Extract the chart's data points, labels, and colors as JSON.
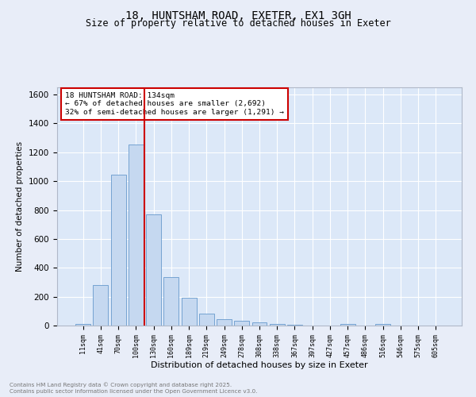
{
  "title1": "18, HUNTSHAM ROAD, EXETER, EX1 3GH",
  "title2": "Size of property relative to detached houses in Exeter",
  "xlabel": "Distribution of detached houses by size in Exeter",
  "ylabel": "Number of detached properties",
  "bar_labels": [
    "11sqm",
    "41sqm",
    "70sqm",
    "100sqm",
    "130sqm",
    "160sqm",
    "189sqm",
    "219sqm",
    "249sqm",
    "278sqm",
    "308sqm",
    "338sqm",
    "367sqm",
    "397sqm",
    "427sqm",
    "457sqm",
    "486sqm",
    "516sqm",
    "546sqm",
    "575sqm",
    "605sqm"
  ],
  "bar_values": [
    10,
    280,
    1045,
    1255,
    770,
    335,
    190,
    80,
    45,
    32,
    22,
    13,
    8,
    2,
    0,
    13,
    0,
    10,
    0,
    0,
    0
  ],
  "bar_color": "#c5d8f0",
  "bar_edgecolor": "#6699cc",
  "vline_index": 4,
  "vline_color": "#cc0000",
  "annotation_text": "18 HUNTSHAM ROAD: 134sqm\n← 67% of detached houses are smaller (2,692)\n32% of semi-detached houses are larger (1,291) →",
  "annotation_box_edgecolor": "#cc0000",
  "ylim": [
    0,
    1650
  ],
  "yticks": [
    0,
    200,
    400,
    600,
    800,
    1000,
    1200,
    1400,
    1600
  ],
  "fig_bg_color": "#e8edf8",
  "plot_bg_color": "#dce8f8",
  "grid_color": "#ffffff",
  "footer_line1": "Contains HM Land Registry data © Crown copyright and database right 2025.",
  "footer_line2": "Contains public sector information licensed under the Open Government Licence v3.0."
}
